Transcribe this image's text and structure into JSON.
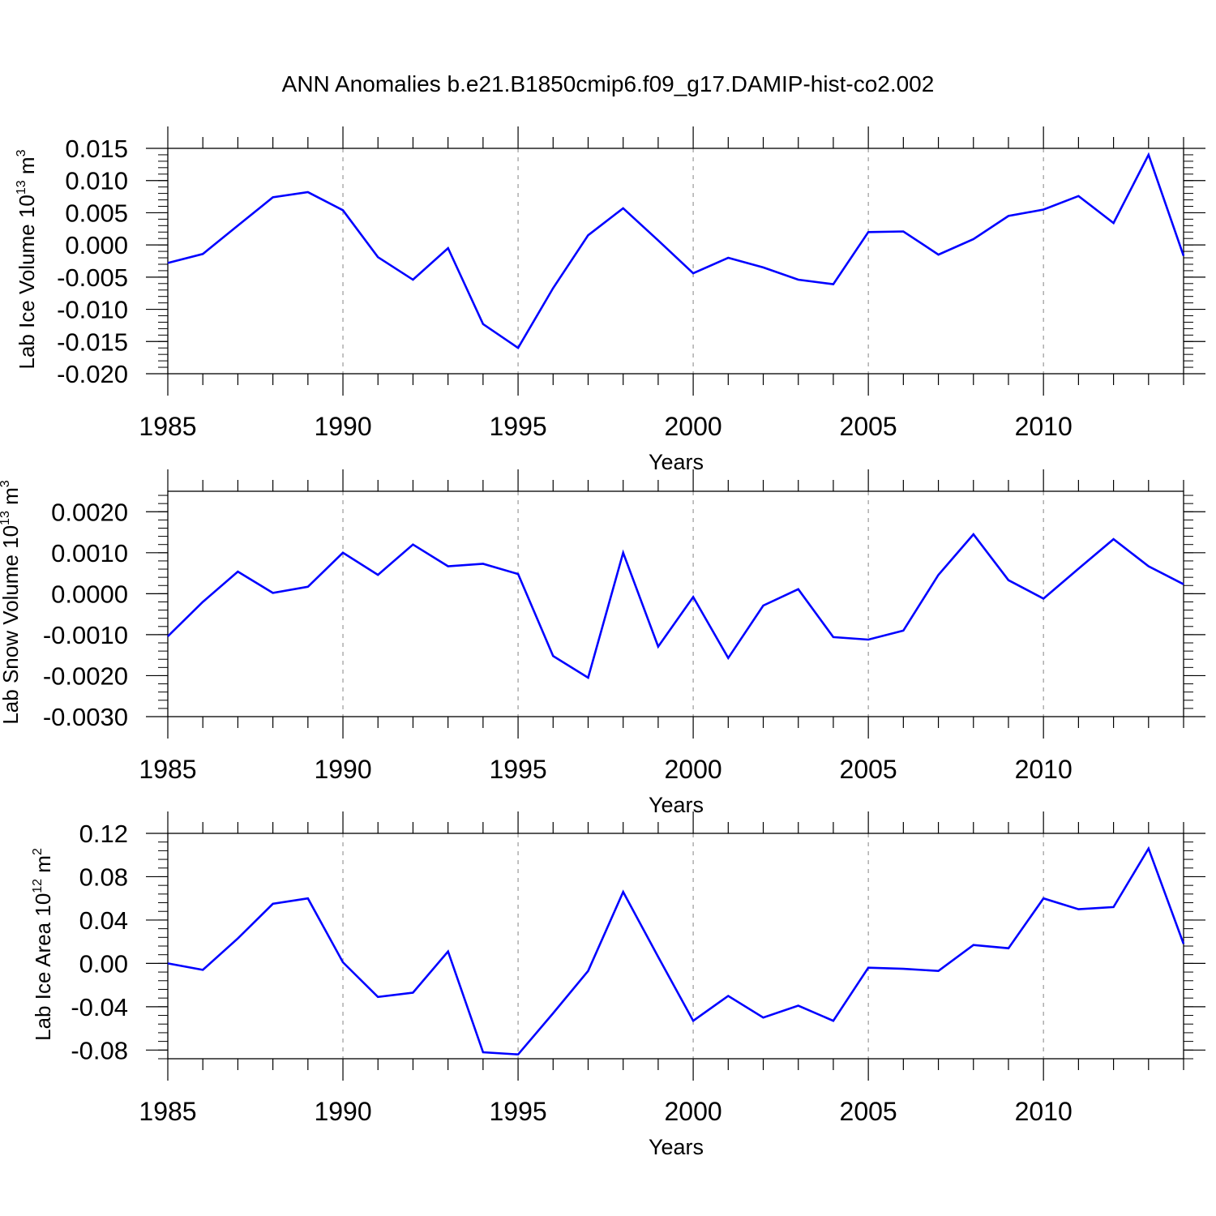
{
  "title": "ANN Anomalies b.e21.B1850cmip6.f09_g17.DAMIP-hist-co2.002",
  "line_color": "#0000ff",
  "chart_data": [
    {
      "type": "line",
      "xlabel": "Years",
      "ylabel": "Lab Ice Volume 10",
      "ylabel_exp": "13",
      "ylabel_unit": " m",
      "ylabel_unit_exp": "3",
      "xlim": [
        1985,
        2014
      ],
      "ylim": [
        -0.02,
        0.015
      ],
      "x_ticks": [
        "1985",
        "1990",
        "1995",
        "2000",
        "2005",
        "2010"
      ],
      "y_ticks": [
        "0.015",
        "0.010",
        "0.005",
        "0.000",
        "-0.005",
        "-0.010",
        "-0.015",
        "-0.020"
      ],
      "grid": "vertical dashed at major x ticks",
      "x": [
        1985,
        1986,
        1987,
        1988,
        1989,
        1990,
        1991,
        1992,
        1993,
        1994,
        1995,
        1996,
        1997,
        1998,
        1999,
        2000,
        2001,
        2002,
        2003,
        2004,
        2005,
        2006,
        2007,
        2008,
        2009,
        2010,
        2011,
        2012,
        2013,
        2014
      ],
      "values": [
        -0.0028,
        -0.0014,
        0.003,
        0.0074,
        0.0082,
        0.0054,
        -0.0019,
        -0.0054,
        -0.0005,
        -0.0123,
        -0.016,
        -0.0067,
        0.0015,
        0.0057,
        0.0007,
        -0.0044,
        -0.002,
        -0.0035,
        -0.0054,
        -0.0061,
        0.002,
        0.0021,
        -0.0015,
        0.0009,
        0.0045,
        0.0055,
        0.0076,
        0.0034,
        0.014,
        -0.0017
      ]
    },
    {
      "type": "line",
      "xlabel": "Years",
      "ylabel": "Lab Snow Volume 10",
      "ylabel_exp": "13",
      "ylabel_unit": " m",
      "ylabel_unit_exp": "3",
      "xlim": [
        1985,
        2014
      ],
      "ylim": [
        -0.003,
        0.0025
      ],
      "x_ticks": [
        "1985",
        "1990",
        "1995",
        "2000",
        "2005",
        "2010"
      ],
      "y_ticks": [
        "0.0020",
        "0.0010",
        "0.0000",
        "-0.0010",
        "-0.0020",
        "-0.0030"
      ],
      "grid": "vertical dashed at major x ticks",
      "x": [
        1985,
        1986,
        1987,
        1988,
        1989,
        1990,
        1991,
        1992,
        1993,
        1994,
        1995,
        1996,
        1997,
        1998,
        1999,
        2000,
        2001,
        2002,
        2003,
        2004,
        2005,
        2006,
        2007,
        2008,
        2009,
        2010,
        2011,
        2012,
        2013,
        2014
      ],
      "values": [
        -0.00104,
        -0.0002,
        0.00054,
        2e-05,
        0.00017,
        0.001,
        0.00046,
        0.0012,
        0.00067,
        0.00073,
        0.00048,
        -0.00152,
        -0.00205,
        0.001,
        -0.00129,
        -8e-05,
        -0.00157,
        -0.00029,
        0.00011,
        -0.00106,
        -0.00112,
        -0.0009,
        0.00046,
        0.00145,
        0.00033,
        -0.00012,
        0.00061,
        0.00133,
        0.00067,
        0.00023
      ]
    },
    {
      "type": "line",
      "xlabel": "Years",
      "ylabel": "Lab Ice Area 10",
      "ylabel_exp": "12",
      "ylabel_unit": " m",
      "ylabel_unit_exp": "2",
      "xlim": [
        1985,
        2014
      ],
      "ylim": [
        -0.088,
        0.12
      ],
      "x_ticks": [
        "1985",
        "1990",
        "1995",
        "2000",
        "2005",
        "2010"
      ],
      "y_ticks": [
        "0.12",
        "0.08",
        "0.04",
        "0.00",
        "-0.04",
        "-0.08"
      ],
      "grid": "vertical dashed at major x ticks",
      "x": [
        1985,
        1986,
        1987,
        1988,
        1989,
        1990,
        1991,
        1992,
        1993,
        1994,
        1995,
        1996,
        1997,
        1998,
        1999,
        2000,
        2001,
        2002,
        2003,
        2004,
        2005,
        2006,
        2007,
        2008,
        2009,
        2010,
        2011,
        2012,
        2013,
        2014
      ],
      "values": [
        0.0,
        -0.006,
        0.023,
        0.055,
        0.06,
        0.001,
        -0.031,
        -0.027,
        0.011,
        -0.082,
        -0.084,
        -0.046,
        -0.007,
        0.066,
        0.006,
        -0.053,
        -0.03,
        -0.05,
        -0.039,
        -0.053,
        -0.004,
        -0.005,
        -0.007,
        0.017,
        0.014,
        0.06,
        0.05,
        0.052,
        0.106,
        0.018
      ]
    }
  ]
}
